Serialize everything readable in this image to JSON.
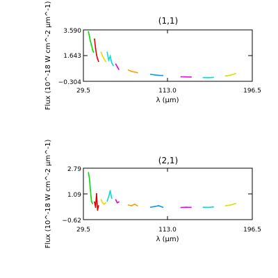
{
  "chart_data": [
    {
      "type": "line",
      "title": "(1,1)",
      "xlabel": "λ (μm)",
      "ylabel": "Flux (10^-18 W cm^-2 μm^-1)",
      "xlim": [
        29.5,
        196.5
      ],
      "ylim": [
        -0.304,
        3.59
      ],
      "x_ticks": [
        "29.5",
        "113.0",
        "196.5"
      ],
      "y_ticks": [
        "3.590",
        "1.643",
        "−0.304"
      ],
      "series": [
        {
          "color": "#00dd00",
          "x": [
            34.5,
            35.5,
            36.5,
            37.5,
            38.5,
            39.5
          ],
          "y": [
            3.45,
            3.1,
            2.7,
            2.45,
            2.1,
            1.9
          ]
        },
        {
          "color": "#dd0000",
          "x": [
            40.5,
            41.5,
            42.5,
            43.5,
            44.5
          ],
          "y": [
            2.9,
            2.2,
            1.7,
            1.4,
            1.2
          ]
        },
        {
          "color": "#dddd00",
          "x": [
            47,
            48.5,
            50,
            51.5
          ],
          "y": [
            1.9,
            1.6,
            1.4,
            1.2
          ]
        },
        {
          "color": "#00dddd",
          "x": [
            53,
            54.5,
            56,
            57.5,
            59
          ],
          "y": [
            1.9,
            1.3,
            1.6,
            1.1,
            0.9
          ]
        },
        {
          "color": "#dd00dd",
          "x": [
            61.5,
            63,
            64.5
          ],
          "y": [
            1.0,
            0.8,
            0.6
          ]
        },
        {
          "color": "#ff9900",
          "x": [
            74,
            77,
            80,
            83
          ],
          "y": [
            0.55,
            0.45,
            0.4,
            0.35
          ]
        },
        {
          "color": "#0099ff",
          "x": [
            96,
            100,
            104,
            108
          ],
          "y": [
            0.22,
            0.18,
            0.15,
            0.14
          ]
        },
        {
          "color": "#ee00ee",
          "x": [
            126,
            131,
            136
          ],
          "y": [
            0.04,
            0.03,
            0.02
          ]
        },
        {
          "color": "#00dddd",
          "x": [
            148,
            153,
            158
          ],
          "y": [
            -0.02,
            -0.03,
            -0.01
          ]
        },
        {
          "color": "#dddd00",
          "x": [
            170,
            175,
            180
          ],
          "y": [
            0.1,
            0.16,
            0.28
          ]
        }
      ]
    },
    {
      "type": "line",
      "title": "(2,1)",
      "xlabel": "λ (μm)",
      "ylabel": "Flux (10^-18 W cm^-2 μm^-1)",
      "xlim": [
        29.5,
        196.5
      ],
      "ylim": [
        -0.62,
        2.79
      ],
      "x_ticks": [
        "29.5",
        "113.0",
        "196.5"
      ],
      "y_ticks": [
        "2.79",
        "1.09",
        "−0.62"
      ],
      "series": [
        {
          "color": "#00dd00",
          "x": [
            34.5,
            35.5,
            36.5,
            37.5,
            38.5
          ],
          "y": [
            2.5,
            2.1,
            1.3,
            0.6,
            0.45
          ]
        },
        {
          "color": "#dd0000",
          "x": [
            40.5,
            41.5,
            42.5,
            43.5,
            44.5
          ],
          "y": [
            0.55,
            0.2,
            1.1,
            0.0,
            0.3
          ]
        },
        {
          "color": "#dddd00",
          "x": [
            47,
            48.5,
            50,
            51.5
          ],
          "y": [
            0.7,
            0.5,
            0.4,
            0.5
          ]
        },
        {
          "color": "#00dddd",
          "x": [
            53,
            54.5,
            56,
            57.5
          ],
          "y": [
            0.6,
            0.9,
            1.3,
            0.8
          ]
        },
        {
          "color": "#dd00dd",
          "x": [
            61.5,
            63,
            64.5
          ],
          "y": [
            0.7,
            0.5,
            0.55
          ]
        },
        {
          "color": "#ff9900",
          "x": [
            74,
            77,
            80,
            83
          ],
          "y": [
            0.35,
            0.3,
            0.4,
            0.3
          ]
        },
        {
          "color": "#0099ff",
          "x": [
            96,
            100,
            104,
            108
          ],
          "y": [
            0.2,
            0.25,
            0.3,
            0.2
          ]
        },
        {
          "color": "#ee00ee",
          "x": [
            126,
            131,
            136
          ],
          "y": [
            0.18,
            0.2,
            0.19
          ]
        },
        {
          "color": "#00dddd",
          "x": [
            148,
            153,
            158
          ],
          "y": [
            0.2,
            0.19,
            0.22
          ]
        },
        {
          "color": "#dddd00",
          "x": [
            170,
            175,
            180
          ],
          "y": [
            0.3,
            0.35,
            0.45
          ]
        }
      ]
    }
  ]
}
